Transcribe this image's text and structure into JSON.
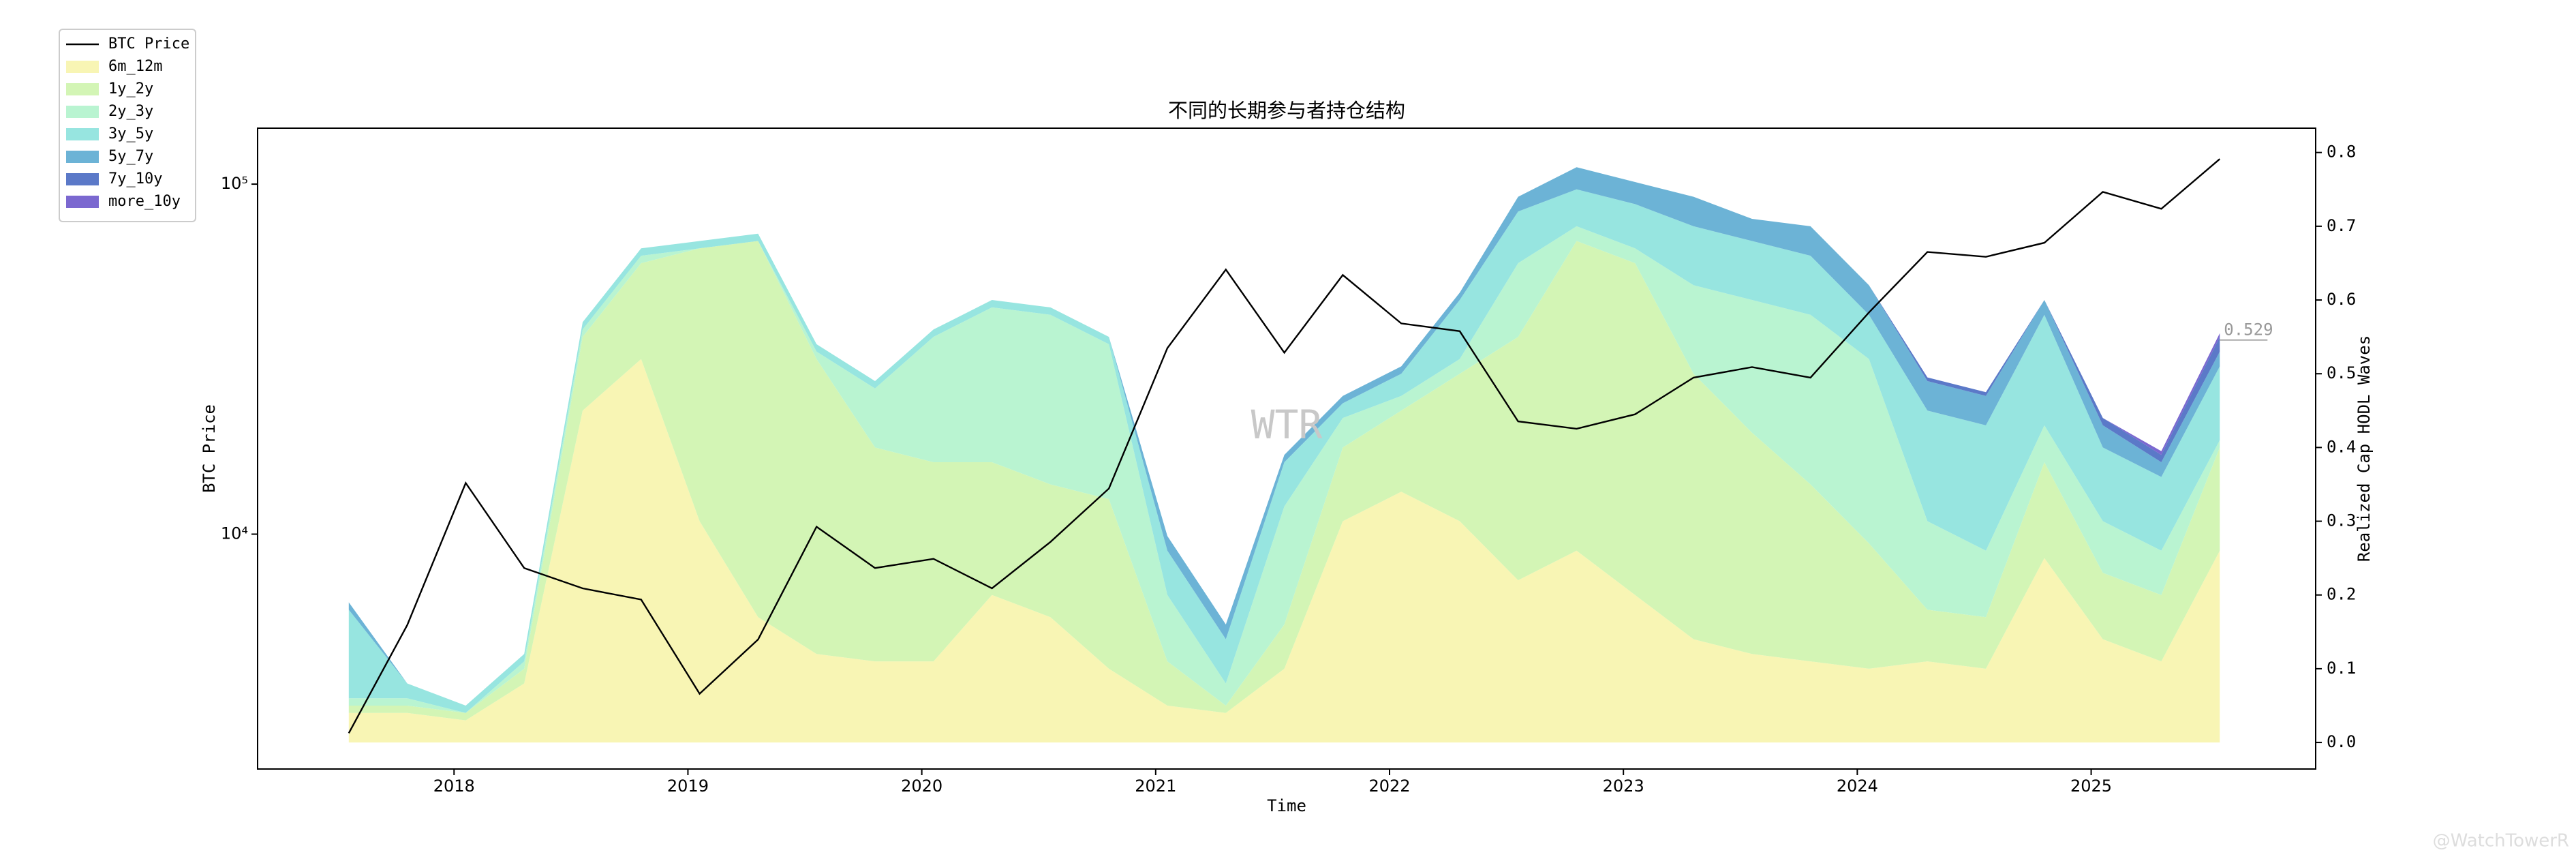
{
  "chart_data": {
    "type": "line",
    "title": "不同的长期参与者持仓结构",
    "x_label": "Time",
    "y_label": "BTC Price",
    "y2_label": "Realized Cap HODL Waves",
    "annotation": "0.529",
    "watermark": "WTR",
    "credit": "@WatchTowerR",
    "x": [
      2017.55,
      2017.8,
      2018.05,
      2018.3,
      2018.55,
      2018.8,
      2019.05,
      2019.3,
      2019.55,
      2019.8,
      2020.05,
      2020.3,
      2020.55,
      2020.8,
      2021.05,
      2021.3,
      2021.55,
      2021.8,
      2022.05,
      2022.3,
      2022.55,
      2022.8,
      2023.05,
      2023.3,
      2023.55,
      2023.8,
      2024.05,
      2024.3,
      2024.55,
      2024.8,
      2025.05,
      2025.3,
      2025.55
    ],
    "xlim": [
      2017.16,
      2025.96
    ],
    "xticks": [
      2018,
      2019,
      2020,
      2021,
      2022,
      2023,
      2024,
      2025
    ],
    "ylim": [
      2133,
      144500
    ],
    "yscale": "log",
    "yticks": [
      {
        "value": 10000,
        "label": "10⁴"
      },
      {
        "value": 100000,
        "label": "10⁵"
      }
    ],
    "y2lim": [
      -0.036,
      0.833
    ],
    "y2ticks": [
      {
        "value": 0,
        "label": "0.0"
      },
      0.1,
      0.2,
      0.3,
      0.4,
      0.5,
      0.6,
      0.7,
      0.8
    ],
    "legend": "outside upper left",
    "series": [
      {
        "name": "BTC Price",
        "color": "#000000",
        "type": "line",
        "axis": "y",
        "values": [
          2700,
          5500,
          14000,
          8000,
          7000,
          6500,
          3500,
          5000,
          10500,
          8000,
          8500,
          7000,
          9500,
          13500,
          34000,
          57000,
          33000,
          55000,
          40000,
          38000,
          21000,
          20000,
          22000,
          28000,
          30000,
          28000,
          43000,
          64000,
          62000,
          68000,
          95000,
          85000,
          118000
        ]
      },
      {
        "name": "6m_12m",
        "color": "#f8f5b4",
        "type": "area",
        "axis": "y2",
        "values": [
          0.04,
          0.04,
          0.03,
          0.08,
          0.45,
          0.52,
          0.3,
          0.17,
          0.12,
          0.11,
          0.11,
          0.2,
          0.17,
          0.1,
          0.05,
          0.04,
          0.1,
          0.3,
          0.34,
          0.3,
          0.22,
          0.26,
          0.2,
          0.14,
          0.12,
          0.11,
          0.1,
          0.11,
          0.1,
          0.25,
          0.14,
          0.11,
          0.26
        ]
      },
      {
        "name": "1y_2y",
        "color": "#d3f5b5",
        "type": "area",
        "axis": "y2",
        "values": [
          0.01,
          0.01,
          0.01,
          0.02,
          0.1,
          0.13,
          0.37,
          0.51,
          0.4,
          0.29,
          0.27,
          0.18,
          0.18,
          0.23,
          0.06,
          0.01,
          0.06,
          0.1,
          0.11,
          0.2,
          0.33,
          0.42,
          0.45,
          0.36,
          0.3,
          0.24,
          0.17,
          0.07,
          0.07,
          0.13,
          0.09,
          0.09,
          0.14
        ]
      },
      {
        "name": "2y_3y",
        "color": "#b9f4d1",
        "type": "area",
        "axis": "y2",
        "values": [
          0.01,
          0.01,
          0,
          0.01,
          0.01,
          0.01,
          0,
          0,
          0.01,
          0.08,
          0.17,
          0.21,
          0.23,
          0.21,
          0.09,
          0.03,
          0.16,
          0.04,
          0.02,
          0.02,
          0.1,
          0.02,
          0.02,
          0.12,
          0.18,
          0.23,
          0.25,
          0.12,
          0.09,
          0.05,
          0.07,
          0.06,
          0.01
        ]
      },
      {
        "name": "3y_5y",
        "color": "#97e5e0",
        "type": "area",
        "axis": "y2",
        "values": [
          0.12,
          0.02,
          0.01,
          0.01,
          0.01,
          0.01,
          0.01,
          0.01,
          0.01,
          0.01,
          0.01,
          0.01,
          0.01,
          0.01,
          0.06,
          0.06,
          0.06,
          0.02,
          0.03,
          0.08,
          0.07,
          0.05,
          0.06,
          0.08,
          0.08,
          0.08,
          0.06,
          0.15,
          0.17,
          0.15,
          0.1,
          0.1,
          0.1
        ]
      },
      {
        "name": "5y_7y",
        "color": "#6cb3d6",
        "type": "area",
        "axis": "y2",
        "values": [
          0.01,
          0,
          0,
          0,
          0,
          0,
          0,
          0,
          0,
          0,
          0,
          0,
          0,
          0,
          0.02,
          0.02,
          0.01,
          0.01,
          0.01,
          0.01,
          0.02,
          0.03,
          0.03,
          0.04,
          0.03,
          0.04,
          0.04,
          0.04,
          0.04,
          0.02,
          0.03,
          0.02,
          0.02
        ]
      },
      {
        "name": "7y_10y",
        "color": "#5b79c8",
        "type": "area",
        "axis": "y2",
        "values": [
          0,
          0,
          0,
          0,
          0,
          0,
          0,
          0,
          0,
          0,
          0,
          0,
          0,
          0,
          0,
          0,
          0,
          0,
          0,
          0,
          0,
          0,
          0,
          0,
          0,
          0,
          0,
          0.005,
          0.005,
          0,
          0.01,
          0.01,
          0.02
        ]
      },
      {
        "name": "more_10y",
        "color": "#7b68d0",
        "type": "area",
        "axis": "y2",
        "values": [
          0,
          0,
          0,
          0,
          0,
          0,
          0,
          0,
          0,
          0,
          0,
          0,
          0,
          0,
          0,
          0,
          0,
          0,
          0,
          0,
          0,
          0,
          0,
          0,
          0,
          0,
          0,
          0,
          0,
          0,
          0,
          0.005,
          0.005
        ]
      }
    ]
  }
}
